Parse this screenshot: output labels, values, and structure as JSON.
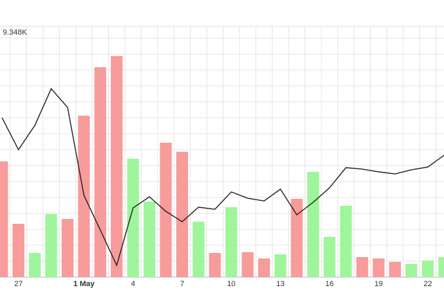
{
  "chart_data": {
    "type": "bar",
    "categories": [
      null,
      "27",
      null,
      null,
      null,
      "1 May",
      null,
      null,
      "4",
      null,
      null,
      "7",
      null,
      null,
      "10",
      null,
      null,
      "13",
      null,
      null,
      "16",
      null,
      null,
      "19",
      null,
      null,
      "22",
      null
    ],
    "ylim": [
      0,
      9348
    ],
    "yticks": [
      {
        "value": 9348,
        "label": "9.348K"
      }
    ],
    "grid": true,
    "series": [
      {
        "type": "bar",
        "values": [
          4312,
          1988,
          904,
          2350,
          2169,
          6017,
          7824,
          8237,
          4416,
          2815,
          5010,
          4674,
          2066,
          904,
          2608,
          930,
          697,
          852,
          2918,
          3925,
          1498,
          2660,
          749,
          697,
          568,
          491,
          620,
          749
        ],
        "colors": [
          "#f79b9b",
          "#f79b9b",
          "#9ff59b",
          "#9ff59b",
          "#f79b9b",
          "#f79b9b",
          "#f79b9b",
          "#f79b9b",
          "#9ff59b",
          "#9ff59b",
          "#f79b9b",
          "#f79b9b",
          "#9ff59b",
          "#f79b9b",
          "#9ff59b",
          "#f79b9b",
          "#f79b9b",
          "#9ff59b",
          "#f79b9b",
          "#9ff59b",
          "#9ff59b",
          "#9ff59b",
          "#f79b9b",
          "#f79b9b",
          "#f79b9b",
          "#9ff59b",
          "#9ff59b",
          "#9ff59b"
        ]
      },
      {
        "type": "line",
        "color": "#222222",
        "values": [
          5939,
          4751,
          5655,
          7023,
          6326,
          3047,
          1756,
          439,
          2582,
          2995,
          2453,
          2066,
          2608,
          2530,
          3176,
          2943,
          2840,
          3279,
          2324,
          2789,
          3331,
          4080,
          4028,
          3925,
          3847,
          4002,
          4105,
          4544
        ]
      }
    ]
  }
}
